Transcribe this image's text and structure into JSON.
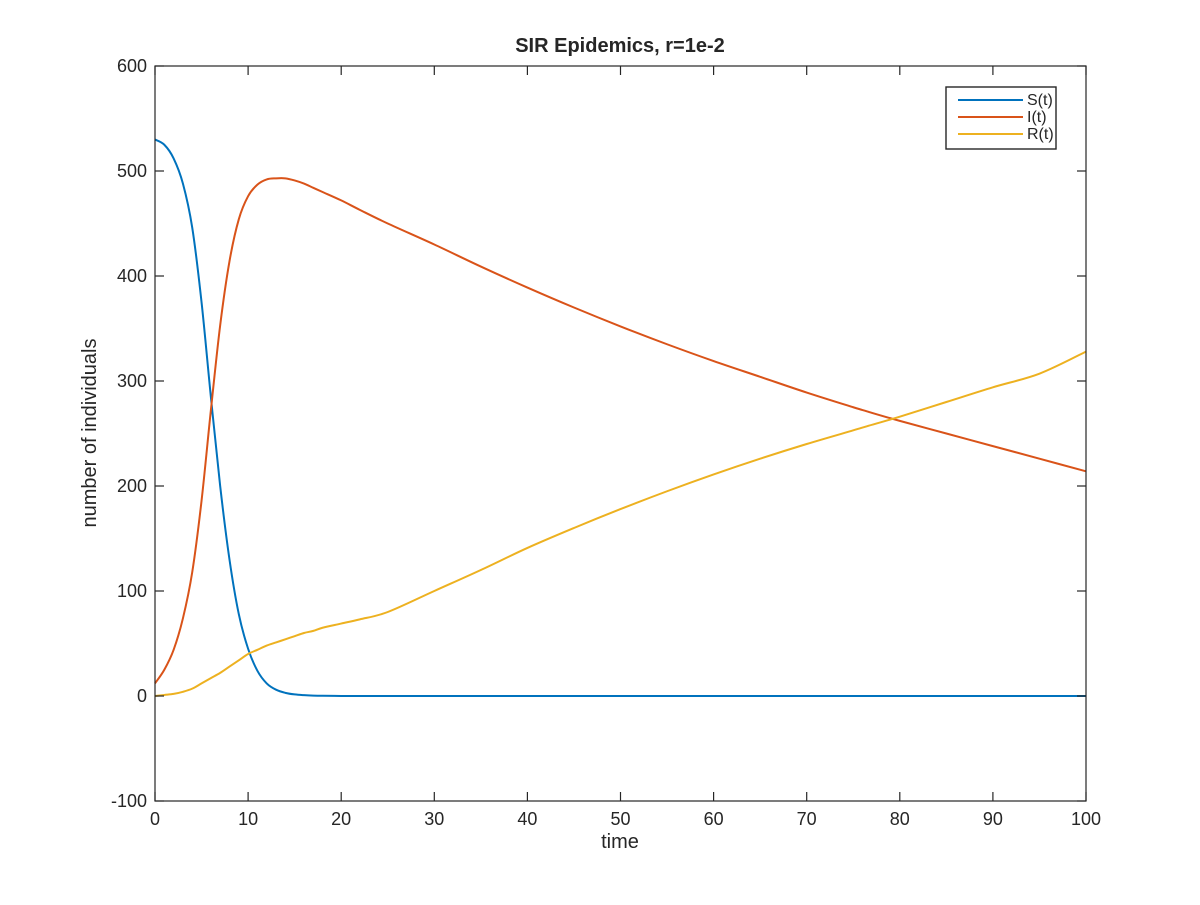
{
  "chart_data": {
    "type": "line",
    "title": "SIR Epidemics, r=1e-2",
    "xlabel": "time",
    "ylabel": "number of individuals",
    "xlim": [
      0,
      100
    ],
    "ylim": [
      -100,
      600
    ],
    "xticks": [
      "0",
      "10",
      "20",
      "30",
      "40",
      "50",
      "60",
      "70",
      "80",
      "90",
      "100"
    ],
    "yticks": [
      "-100",
      "0",
      "100",
      "200",
      "300",
      "400",
      "500",
      "600"
    ],
    "grid": false,
    "legend_position": "top-right",
    "x": [
      0,
      1,
      2,
      3,
      4,
      5,
      6,
      7,
      8,
      9,
      10,
      11,
      12,
      13,
      14,
      15,
      16,
      17,
      18,
      20,
      22,
      25,
      30,
      35,
      40,
      45,
      50,
      55,
      60,
      65,
      70,
      75,
      76.5,
      80,
      85,
      90,
      95,
      100
    ],
    "series": [
      {
        "name": "S(t)",
        "color": "#0072bd",
        "values": [
          530,
          525,
          512,
          488,
          446,
          375,
          285,
          200,
          130,
          78,
          45,
          24,
          12,
          6,
          3,
          1.5,
          0.8,
          0.4,
          0.2,
          0.05,
          0,
          0,
          0,
          0,
          0,
          0,
          0,
          0,
          0,
          0,
          0,
          0,
          0,
          0,
          0,
          0,
          0,
          0
        ]
      },
      {
        "name": "I(t)",
        "color": "#d95319",
        "values": [
          12,
          25,
          44,
          74,
          118,
          186,
          272,
          353,
          414,
          454,
          476,
          487,
          492,
          493,
          493,
          491,
          488,
          484,
          480,
          472,
          463,
          450,
          430,
          409,
          389,
          370,
          352,
          335,
          319,
          304,
          289,
          275,
          271,
          262,
          250,
          238,
          226,
          214
        ]
      },
      {
        "name": "R(t)",
        "color": "#edb120",
        "values": [
          0,
          1,
          2,
          4,
          7,
          12,
          17,
          22,
          28,
          34,
          40,
          44,
          48,
          51,
          54,
          57,
          60,
          62,
          65,
          69,
          73,
          80,
          100,
          120,
          141,
          160,
          178,
          195,
          211,
          226,
          240,
          253,
          257,
          266,
          280,
          294,
          307,
          328
        ]
      }
    ]
  }
}
